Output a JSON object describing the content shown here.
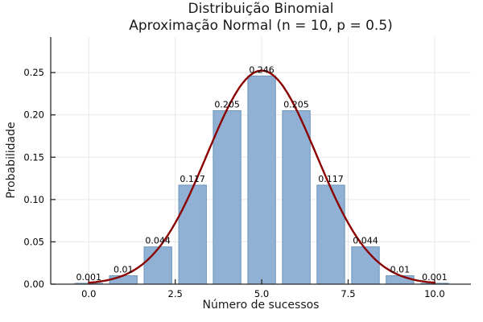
{
  "figure": {
    "title_line1": "Distribuição Binomial",
    "title_line2": "Aproximação Normal (n = 10, p = 0.5)"
  },
  "chart_data": {
    "type": "bar",
    "title": "Distribuição Binomial — Aproximação Normal (n = 10, p = 0.5)",
    "xlabel": "Número de sucessos",
    "ylabel": "Probabilidade",
    "categories": [
      0,
      1,
      2,
      3,
      4,
      5,
      6,
      7,
      8,
      9,
      10
    ],
    "values": [
      0.001,
      0.01,
      0.044,
      0.117,
      0.205,
      0.246,
      0.205,
      0.117,
      0.044,
      0.01,
      0.001
    ],
    "bar_value_labels": [
      "0.001",
      "0.01",
      "0.044",
      "0.117",
      "0.205",
      "0.246",
      "0.205",
      "0.117",
      "0.044",
      "0.01",
      "0.001"
    ],
    "bar_width": 0.8,
    "overlay_curve": {
      "name": "normal-approximation",
      "distribution": "normal_pdf",
      "mu": 5,
      "sigma": 1.5811,
      "x_range": [
        0,
        10
      ]
    },
    "axes": {
      "xticks": [
        0.0,
        2.5,
        5.0,
        7.5,
        10.0
      ],
      "xtick_labels": [
        "0.0",
        "2.5",
        "5.0",
        "7.5",
        "10.0"
      ],
      "yticks": [
        0.0,
        0.05,
        0.1,
        0.15,
        0.2,
        0.25
      ],
      "ytick_labels": [
        "0.00",
        "0.05",
        "0.10",
        "0.15",
        "0.20",
        "0.25"
      ],
      "xlim": [
        -1.1,
        11.05
      ],
      "ylim": [
        0,
        0.292
      ],
      "grid": true,
      "legend": "none"
    },
    "colors": {
      "bar_fill": "#90B1D3",
      "bar_edge": "#6D96BE",
      "curve": "#8B0000",
      "grid": "#E8E8E8",
      "axis": "#262626",
      "text": "#000000",
      "background": "#FFFFFF"
    }
  }
}
